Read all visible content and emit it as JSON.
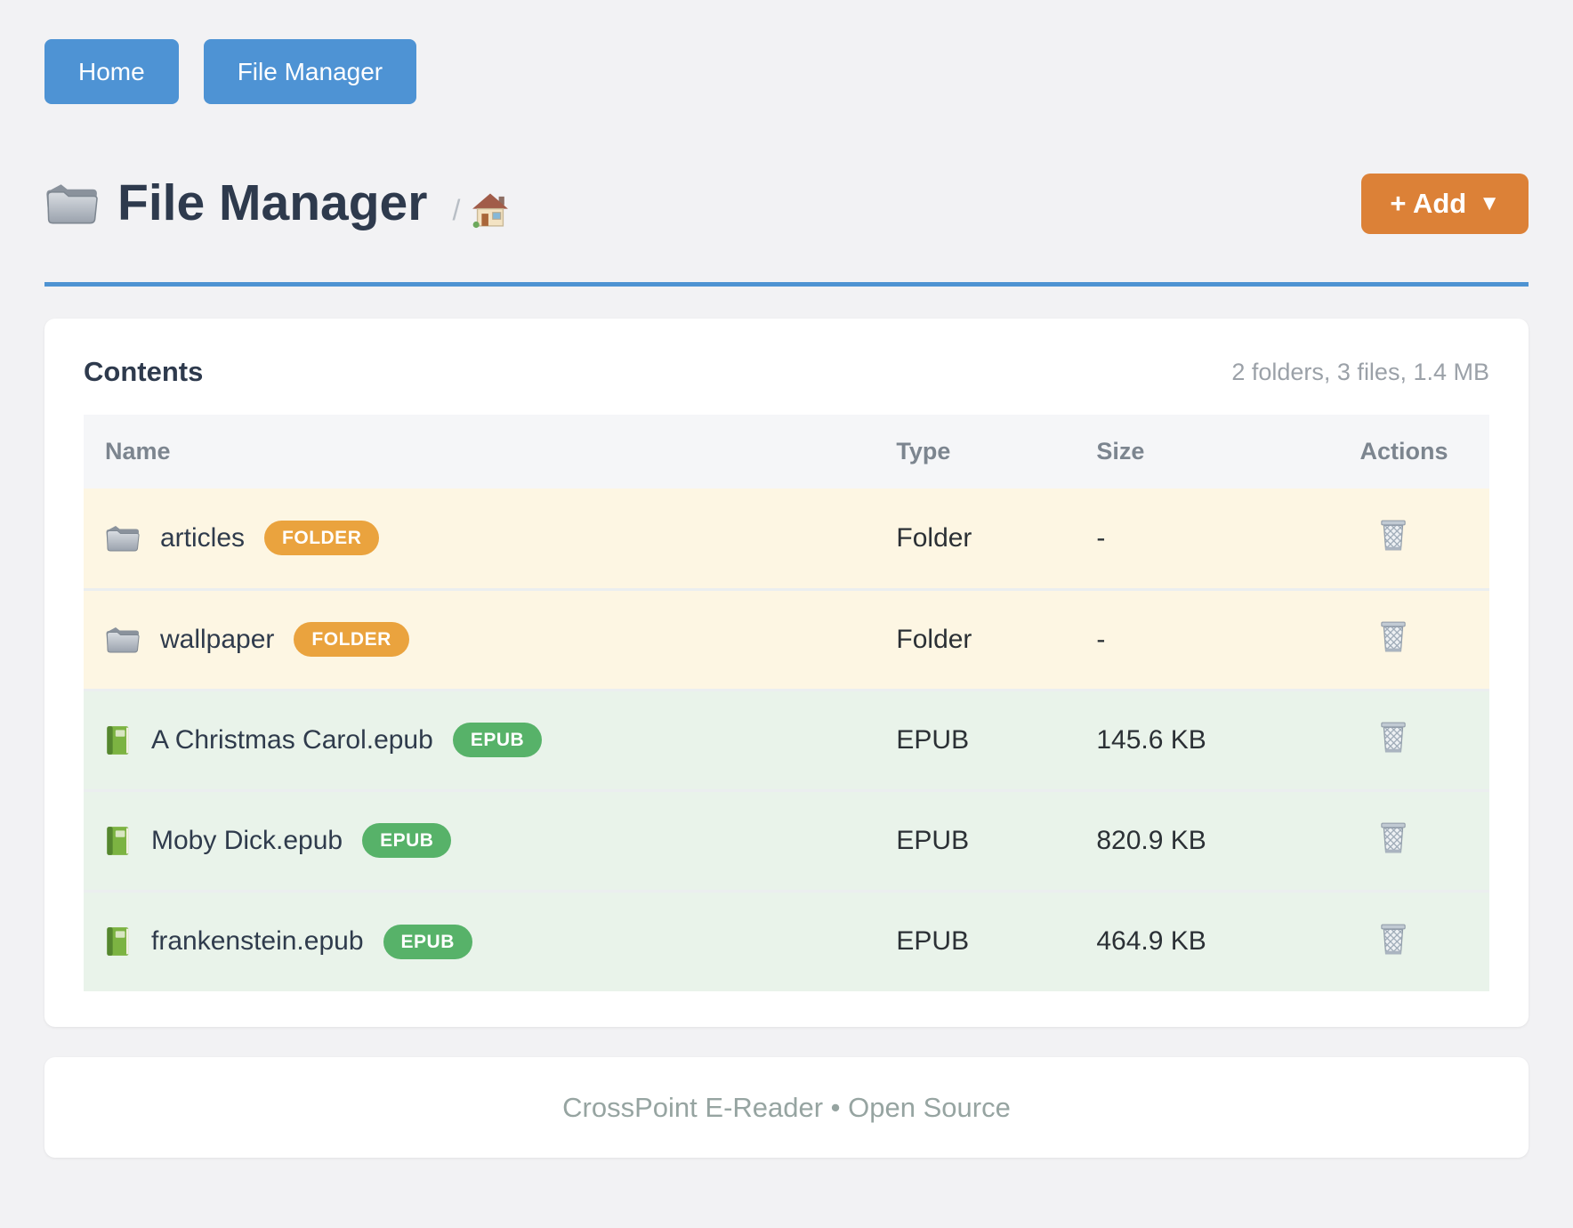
{
  "nav": {
    "home_label": "Home",
    "file_manager_label": "File Manager"
  },
  "header": {
    "title": "File Manager",
    "breadcrumb_separator": "/",
    "add_button_label": "+ Add",
    "add_button_caret": "▼"
  },
  "card": {
    "title": "Contents",
    "summary": "2 folders, 3 files, 1.4 MB",
    "table": {
      "headers": [
        "Name",
        "Type",
        "Size",
        "Actions"
      ],
      "rows": [
        {
          "name": "articles",
          "badge": "FOLDER",
          "type": "Folder",
          "size": "-",
          "kind": "folder"
        },
        {
          "name": "wallpaper",
          "badge": "FOLDER",
          "type": "Folder",
          "size": "-",
          "kind": "folder"
        },
        {
          "name": "A Christmas Carol.epub",
          "badge": "EPUB",
          "type": "EPUB",
          "size": "145.6 KB",
          "kind": "epub"
        },
        {
          "name": "Moby Dick.epub",
          "badge": "EPUB",
          "type": "EPUB",
          "size": "820.9 KB",
          "kind": "epub"
        },
        {
          "name": "frankenstein.epub",
          "badge": "EPUB",
          "type": "EPUB",
          "size": "464.9 KB",
          "kind": "epub"
        }
      ]
    }
  },
  "footer": {
    "text": "CrossPoint E-Reader • Open Source"
  },
  "colors": {
    "nav_button": "#4e93d4",
    "accent_divider": "#4e93d2",
    "add_button": "#dc8137",
    "folder_badge": "#eaa33e",
    "epub_badge": "#57b269",
    "folder_row_bg": "#fdf6e3",
    "epub_row_bg": "#e9f3ea",
    "title_text": "#2e3a4d",
    "muted_text": "#9ba1a8"
  },
  "icons": {
    "title_icon": "folder-icon",
    "breadcrumb_icon": "house-icon",
    "folder_row_icon": "folder-icon",
    "epub_row_icon": "green-book-icon",
    "action_icon": "wastebasket-icon"
  }
}
